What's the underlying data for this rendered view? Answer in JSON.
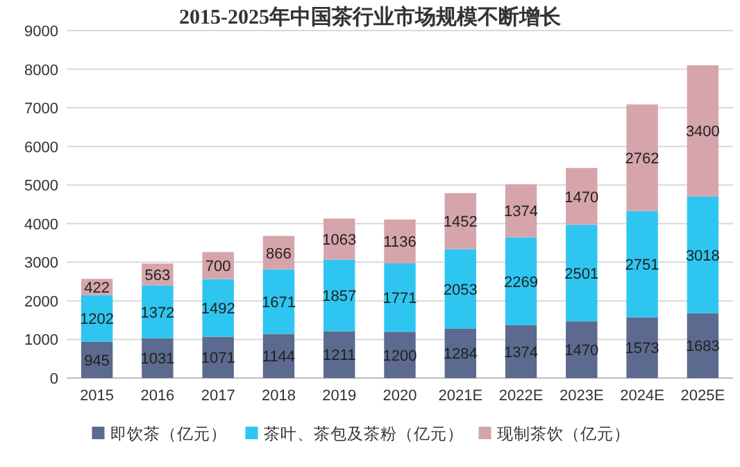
{
  "chart_data": {
    "type": "bar",
    "title": "2015-2025年中国茶行业市场规模不断增长",
    "stacked": true,
    "data_labels": true,
    "grid": "y",
    "legend": "bottom",
    "ylim": [
      0,
      9000
    ],
    "yticks": [
      0,
      1000,
      2000,
      3000,
      4000,
      5000,
      6000,
      7000,
      8000,
      9000
    ],
    "categories": [
      "2015",
      "2016",
      "2017",
      "2018",
      "2019",
      "2020",
      "2021E",
      "2022E",
      "2023E",
      "2024E",
      "2025E"
    ],
    "series": [
      {
        "name": "即饮茶（亿元）",
        "color": "#5b6a8e",
        "values": [
          945,
          1031,
          1071,
          1144,
          1211,
          1200,
          1284,
          1374,
          1470,
          1573,
          1683
        ]
      },
      {
        "name": "茶叶、茶包及茶粉（亿元）",
        "color": "#2ec5f0",
        "values": [
          1202,
          1372,
          1492,
          1671,
          1857,
          1771,
          2053,
          2269,
          2501,
          2751,
          3018
        ]
      },
      {
        "name": "现制茶饮（亿元）",
        "color": "#d6a4ab",
        "values": [
          422,
          563,
          700,
          866,
          1063,
          1136,
          1452,
          1374,
          1470,
          2762,
          3400
        ]
      }
    ]
  }
}
